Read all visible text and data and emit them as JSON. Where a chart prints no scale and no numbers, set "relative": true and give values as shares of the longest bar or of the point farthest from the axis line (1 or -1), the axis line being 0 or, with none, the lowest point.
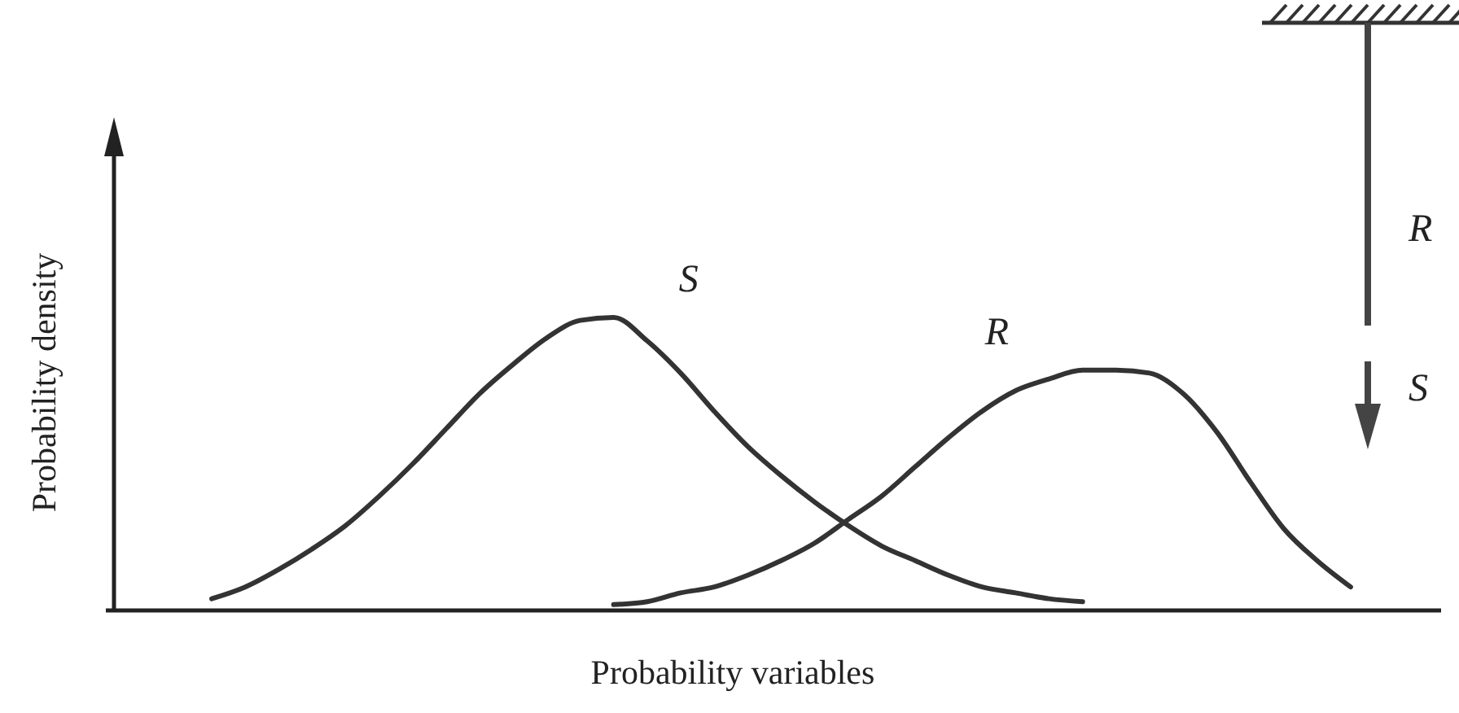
{
  "chart_data": {
    "type": "line",
    "relative": true,
    "xlabel": "Probability variables",
    "ylabel": "Probability density",
    "categories": [
      null,
      null,
      null,
      null,
      null,
      null,
      null,
      null,
      null,
      null,
      null,
      null,
      null,
      null,
      null,
      null,
      null,
      null,
      null,
      null,
      null,
      null,
      null,
      null,
      null,
      null,
      null,
      null,
      null,
      null,
      null,
      null,
      null,
      null,
      null,
      null
    ],
    "series": [
      {
        "name": "S",
        "color": "#333333",
        "values": [
          0.04,
          0.08,
          0.14,
          0.21,
          0.29,
          0.39,
          0.5,
          0.62,
          0.74,
          0.84,
          0.93,
          0.99,
          1,
          0.92,
          0.81,
          0.68,
          0.56,
          0.46,
          0.37,
          0.29,
          0.22,
          0.17,
          0.12,
          0.08,
          0.06,
          0.04,
          0.03,
          null,
          null,
          null,
          null,
          null,
          null,
          null,
          null,
          null
        ]
      },
      {
        "name": "R",
        "color": "#333333",
        "values": [
          null,
          null,
          null,
          null,
          null,
          null,
          null,
          null,
          null,
          null,
          null,
          null,
          0.02,
          0.03,
          0.06,
          0.08,
          0.12,
          0.17,
          0.23,
          0.31,
          0.39,
          0.49,
          0.59,
          0.68,
          0.75,
          0.79,
          0.82,
          0.82,
          0.81,
          0.74,
          0.61,
          0.44,
          0.28,
          0.17,
          0.08,
          null
        ]
      }
    ],
    "annotations": [
      "R",
      "S"
    ]
  }
}
